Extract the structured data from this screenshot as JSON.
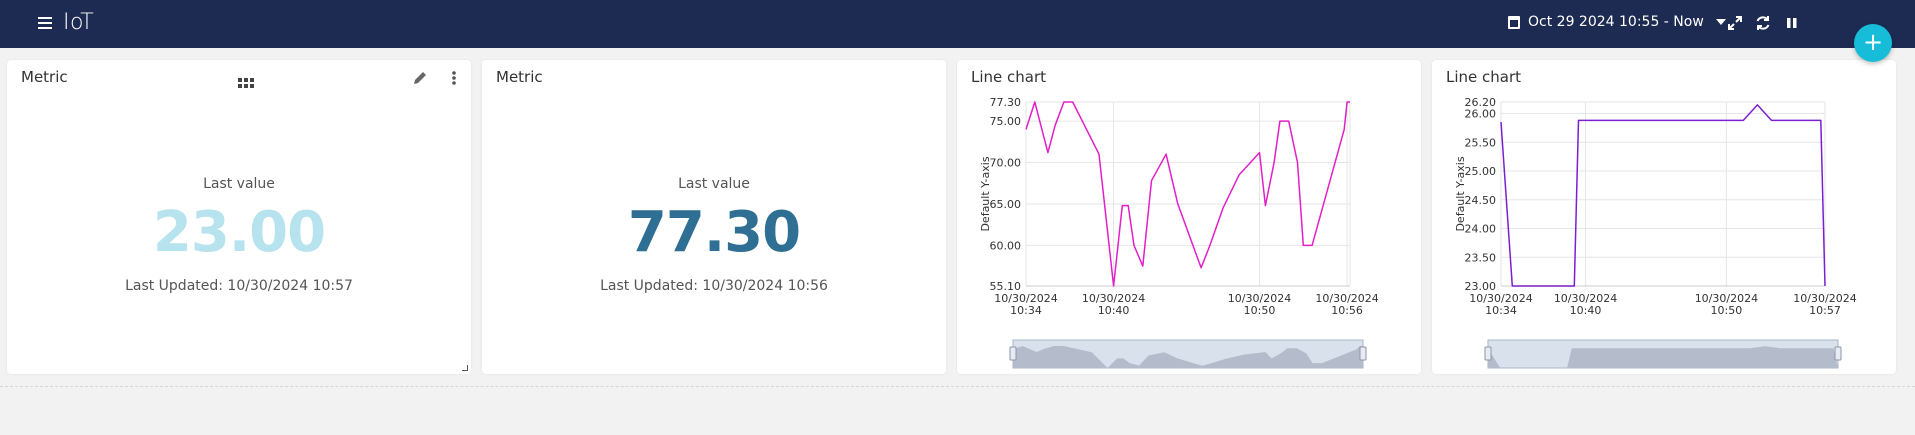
{
  "app": {
    "title": "IoT"
  },
  "toolbar": {
    "time_range": "Oct 29 2024 10:55 - Now"
  },
  "fab": {
    "label": "+"
  },
  "widgets": [
    {
      "title": "Metric",
      "label": "Last value",
      "value": "23.00",
      "updated": "Last Updated: 10/30/2024 10:57",
      "value_color": "#b6e3ee"
    },
    {
      "title": "Metric",
      "label": "Last value",
      "value": "77.30",
      "updated": "Last Updated: 10/30/2024 10:56",
      "value_color": "#2f6f93"
    },
    {
      "title": "Line chart"
    },
    {
      "title": "Line chart"
    }
  ],
  "chart_data": [
    {
      "type": "line",
      "ylabel": "Default Y-axis",
      "ylim": [
        55.1,
        77.3
      ],
      "yticks": [
        "55.10",
        "60.00",
        "65.00",
        "70.00",
        "75.00",
        "77.30"
      ],
      "ytick_values": [
        55.1,
        60,
        65,
        70,
        75,
        77.3
      ],
      "xticks": [
        {
          "date": "10/30/2024",
          "time": "10:34",
          "t": 0
        },
        {
          "date": "10/30/2024",
          "time": "10:40",
          "t": 6
        },
        {
          "date": "10/30/2024",
          "time": "10:50",
          "t": 16
        },
        {
          "date": "10/30/2024",
          "time": "10:56",
          "t": 22
        }
      ],
      "xlim": [
        0,
        22.2
      ],
      "series": [
        {
          "color": "#e21fc8",
          "x": [
            0,
            0.6,
            1.5,
            2.0,
            2.6,
            3.2,
            4.0,
            5.0,
            6.0,
            6.6,
            7.0,
            7.4,
            8.0,
            8.6,
            9.6,
            10.4,
            12.0,
            12.6,
            13.5,
            14.6,
            16.0,
            16.4,
            17.0,
            17.4,
            18.0,
            18.6,
            19.0,
            19.6,
            21.8,
            22.0,
            22.2
          ],
          "y": [
            74.0,
            77.3,
            71.2,
            74.5,
            77.3,
            77.3,
            74.5,
            71.0,
            55.1,
            64.8,
            64.8,
            60.0,
            57.5,
            67.8,
            71.0,
            65.0,
            57.3,
            60.0,
            64.5,
            68.5,
            71.2,
            64.8,
            70.0,
            75.0,
            75.0,
            70.0,
            60.0,
            60.0,
            74.0,
            77.3,
            77.3
          ]
        }
      ],
      "grid": true
    },
    {
      "type": "line",
      "ylabel": "Default Y-axis",
      "ylim": [
        23.0,
        26.2
      ],
      "yticks": [
        "23.00",
        "23.50",
        "24.00",
        "24.50",
        "25.00",
        "25.50",
        "26.00",
        "26.20"
      ],
      "ytick_values": [
        23,
        23.5,
        24,
        24.5,
        25,
        25.5,
        26,
        26.2
      ],
      "xticks": [
        {
          "date": "10/30/2024",
          "time": "10:34",
          "t": 0
        },
        {
          "date": "10/30/2024",
          "time": "10:40",
          "t": 6
        },
        {
          "date": "10/30/2024",
          "time": "10:50",
          "t": 16
        },
        {
          "date": "10/30/2024",
          "time": "10:57",
          "t": 23
        }
      ],
      "xlim": [
        0,
        23
      ],
      "series": [
        {
          "color": "#7b1fd1",
          "x": [
            0,
            0.8,
            5.2,
            5.5,
            17.2,
            18.2,
            19.2,
            22.7,
            23.0
          ],
          "y": [
            25.85,
            23.0,
            23.0,
            25.88,
            25.88,
            26.15,
            25.88,
            25.88,
            23.0
          ]
        }
      ],
      "grid": true
    }
  ]
}
